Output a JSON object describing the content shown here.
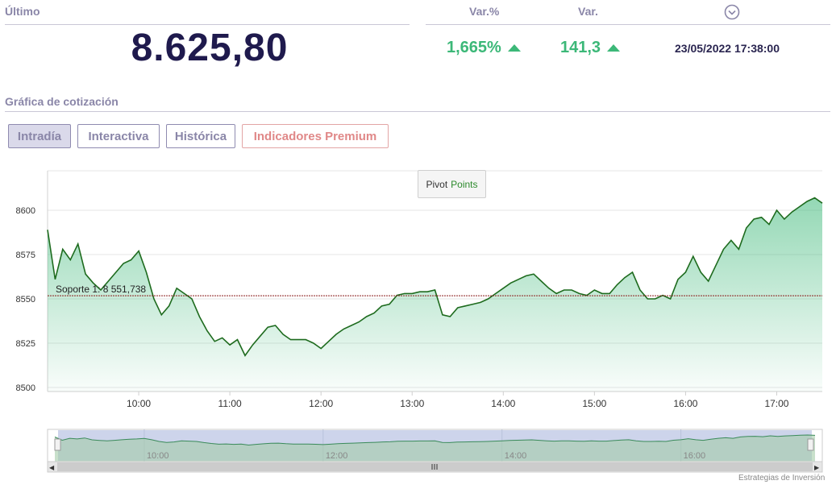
{
  "quote": {
    "last_label": "Último",
    "last_price": "8.625,80",
    "var_pct_label": "Var.%",
    "var_label": "Var.",
    "var_pct_value": "1,665%",
    "var_value": "141,3",
    "timestamp": "23/05/2022 17:38:00",
    "info_icon": "chevron-down-circle-icon",
    "up_color": "#3cb878"
  },
  "section": {
    "title": "Gráfica de cotización"
  },
  "tabs": [
    {
      "label": "Intradía",
      "active": true
    },
    {
      "label": "Interactiva",
      "active": false
    },
    {
      "label": "Histórica",
      "active": false
    },
    {
      "label": "Indicadores Premium",
      "active": false
    }
  ],
  "pivot_button": {
    "label_part1": "Pivot",
    "label_part2": "Points"
  },
  "credits": "Estrategias de Inversión",
  "chart_data": {
    "type": "area",
    "title": "",
    "xlabel": "",
    "ylabel": "",
    "ylim": [
      8500,
      8600
    ],
    "yticks": [
      8500,
      8525,
      8550,
      8575,
      8600
    ],
    "xticks": [
      "10:00",
      "11:00",
      "12:00",
      "13:00",
      "14:00",
      "15:00",
      "16:00",
      "17:00"
    ],
    "xlim": [
      "09:00",
      "17:30"
    ],
    "grid": true,
    "line_color": "#1e6b1e",
    "fill_color": "#3cb878",
    "support_line": {
      "label": "Soporte 1: 8 551,738",
      "value": 8551.738,
      "color": "#8b1a1a"
    },
    "navigator_labels": [
      "10:00",
      "12:00",
      "14:00",
      "16:00"
    ],
    "series": [
      {
        "x": [
          "09:00",
          "09:05",
          "09:10",
          "09:15",
          "09:20",
          "09:25",
          "09:30",
          "09:35",
          "09:40",
          "09:45",
          "09:50",
          "09:55",
          "10:00",
          "10:05",
          "10:10",
          "10:15",
          "10:20",
          "10:25",
          "10:30",
          "10:35",
          "10:40",
          "10:45",
          "10:50",
          "10:55",
          "11:00",
          "11:05",
          "11:10",
          "11:15",
          "11:20",
          "11:25",
          "11:30",
          "11:35",
          "11:40",
          "11:45",
          "11:50",
          "11:55",
          "12:00",
          "12:05",
          "12:10",
          "12:15",
          "12:20",
          "12:25",
          "12:30",
          "12:35",
          "12:40",
          "12:45",
          "12:50",
          "12:55",
          "13:00",
          "13:05",
          "13:10",
          "13:15",
          "13:20",
          "13:25",
          "13:30",
          "13:35",
          "13:40",
          "13:45",
          "13:50",
          "13:55",
          "14:00",
          "14:05",
          "14:10",
          "14:15",
          "14:20",
          "14:25",
          "14:30",
          "14:35",
          "14:40",
          "14:45",
          "14:50",
          "14:55",
          "15:00",
          "15:05",
          "15:10",
          "15:15",
          "15:20",
          "15:25",
          "15:30",
          "15:35",
          "15:40",
          "15:45",
          "15:50",
          "15:55",
          "16:00",
          "16:05",
          "16:10",
          "16:15",
          "16:20",
          "16:25",
          "16:30",
          "16:35",
          "16:40",
          "16:45",
          "16:50",
          "16:55",
          "17:00",
          "17:05",
          "17:10",
          "17:15",
          "17:20",
          "17:25",
          "17:30"
        ],
        "values": [
          8589,
          8561,
          8578,
          8572,
          8581,
          8564,
          8559,
          8555,
          8560,
          8565,
          8570,
          8572,
          8577,
          8565,
          8550,
          8541,
          8546,
          8556,
          8553,
          8550,
          8540,
          8532,
          8526,
          8528,
          8524,
          8527,
          8518,
          8524,
          8529,
          8534,
          8535,
          8530,
          8527,
          8527,
          8527,
          8525,
          8522,
          8526,
          8530,
          8533,
          8535,
          8537,
          8540,
          8542,
          8546,
          8547,
          8552,
          8553,
          8553,
          8554,
          8554,
          8555,
          8541,
          8540,
          8545,
          8546,
          8547,
          8548,
          8550,
          8553,
          8556,
          8559,
          8561,
          8563,
          8564,
          8560,
          8556,
          8553,
          8555,
          8555,
          8553,
          8552,
          8555,
          8553,
          8553,
          8558,
          8562,
          8565,
          8555,
          8550,
          8550,
          8552,
          8550,
          8561,
          8565,
          8574,
          8565,
          8560,
          8569,
          8578,
          8583,
          8578,
          8590,
          8595,
          8596,
          8592,
          8600,
          8595,
          8599,
          8602,
          8605,
          8607,
          8604
        ]
      }
    ]
  }
}
